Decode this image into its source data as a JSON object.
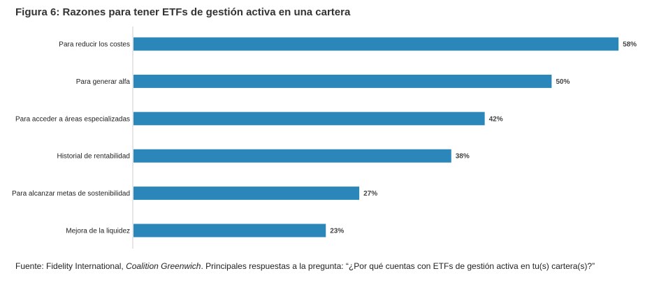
{
  "header": {
    "title": "Figura 6: Razones para tener ETFs de gestión activa en una cartera"
  },
  "chart_data": {
    "type": "bar",
    "orientation": "horizontal",
    "categories": [
      "Para reducir los costes",
      "Para generar alfa",
      "Para acceder a áreas especializadas",
      "Historial de rentabilidad",
      "Para alcanzar metas de sostenibilidad",
      "Mejora de la liquidez"
    ],
    "values": [
      58,
      50,
      42,
      38,
      27,
      23
    ],
    "value_labels": [
      "58%",
      "50%",
      "42%",
      "38%",
      "27%",
      "23%"
    ],
    "xlim": [
      0,
      60
    ],
    "grid": false,
    "legend": "none",
    "bar_color": "#2b87b9",
    "axis_color": "#cccccc"
  },
  "footer": {
    "source_prefix": "Fuente: Fidelity International, ",
    "source_italic": "Coalition Greenwich",
    "source_suffix": ". Principales respuestas a la pregunta: “¿Por qué cuentas con ETFs de gestión activa en tu(s) cartera(s)?”"
  }
}
